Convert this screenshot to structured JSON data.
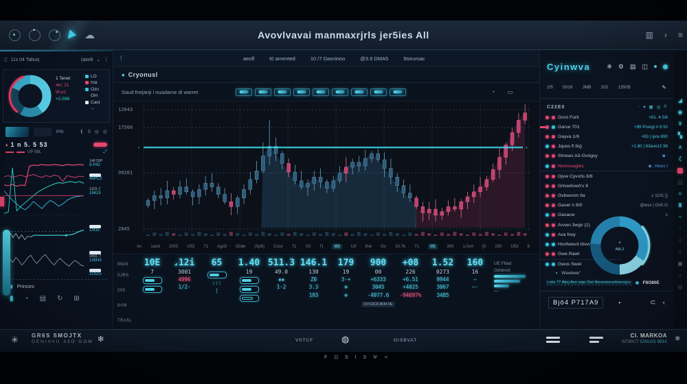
{
  "window_title": "Avovlvavai manmaxrjrls jer5ies All",
  "header": {
    "left_icons": [
      "timer-icon",
      "refresh-icon",
      "clock-icon",
      "play-icon",
      "cloud-icon"
    ],
    "cloud_glyph": "☁",
    "right_icons": [
      {
        "name": "panel-icon",
        "glyph": "▥"
      },
      {
        "name": "chevron-right-icon",
        "glyph": "›"
      },
      {
        "name": "menu-icon",
        "glyph": "≡"
      }
    ]
  },
  "left_sidebar": {
    "header": {
      "grip": "⁞⁞",
      "title": "11s 04 Tabuq",
      "right_label": "(asv9",
      "chevron": "⌄",
      "more": "⋮"
    },
    "donut_legend_left": [
      "1 Tenet",
      "4k/; 21",
      "W-p1",
      "+2.598"
    ],
    "donut_legend_right": [
      {
        "marker": "#35c5e0",
        "label": "LO"
      },
      {
        "marker": "#e8476f",
        "label": "roa"
      },
      {
        "marker": "#35c5e0",
        "label": "Ozn"
      },
      {
        "marker": "",
        "label": "Om"
      },
      {
        "marker": "#dfe8ee",
        "label": "Cast"
      },
      {
        "marker": "",
        "label": "←"
      }
    ],
    "strip": {
      "label": "PSI",
      "icons": [
        "❪",
        "0",
        "◎",
        "◎"
      ]
    },
    "chart_title_prefix": "▴",
    "chart_title": "1 n 5. 5 53",
    "chart_sub": "UP 58L",
    "line_labels": [
      {
        "pill": false,
        "l1": "14F15P",
        "l2": "8·P42"
      },
      {
        "pill": true,
        "l1": "",
        "l2": "45PC2"
      },
      {
        "pill": false,
        "l1": "1115·7",
        "l2": "19415"
      }
    ],
    "spark_labels": [
      {
        "pill": true,
        "l1": "",
        "l2": "1/915"
      },
      {
        "pill": true,
        "l1": "0441·7",
        "l2": "155N3"
      },
      {
        "pill": true,
        "l1": "",
        "l2": "1U515"
      }
    ],
    "footer_label": "Princes",
    "footer_icon": "▮▮",
    "bottom_icons": [
      "▮",
      "◔",
      "▤",
      "↻",
      "⊞"
    ]
  },
  "main": {
    "nav_grip": "⁞",
    "nav_items": [
      "aeofl",
      "t0 amented",
      "10 /7 Dasninoo",
      "@3.9 DMA5",
      "5torursac"
    ],
    "subtitle_dot": "◆",
    "subtitle": "Cryonusl",
    "tools_text": "Saud fnejanji i nuadame di warret",
    "toolbar_buttons": [
      "candles",
      "bars",
      "wave",
      "trend",
      "grid",
      "flag",
      "pen",
      "split",
      "compare"
    ],
    "toolbar_right_icons": [
      {
        "name": "cloud-sync-icon",
        "glyph": "◔"
      },
      {
        "name": "card-icon",
        "glyph": "▭"
      }
    ],
    "stats": {
      "row_labels": [
        "99A5",
        "0JRS",
        "205",
        "8/08",
        "TRA5L"
      ],
      "columns": [
        {
          "big": "10E",
          "sub": "7",
          "pills": 2,
          "extras": []
        },
        {
          "big": "12i",
          "prefix": "◢",
          "sub": "3001",
          "pills": 0,
          "extras": [
            {
              "t": "4096",
              "c": "pink"
            },
            {
              "t": "1/2·",
              "c": "cyan"
            }
          ]
        },
        {
          "big": "65",
          "sub": "",
          "pills": 1,
          "extras": [
            {
              "t": ":::",
              "c": "cyan"
            },
            {
              "t": "¦",
              "c": "cyan"
            }
          ]
        },
        {
          "big": "1.40",
          "sub": "19",
          "pills": 3,
          "extras": []
        },
        {
          "big": "511.3",
          "sub": "49.0",
          "pills": 0,
          "extras": [
            {
              "t": "▪▪",
              "c": "cyan"
            },
            {
              "t": "1·2",
              "c": "cyan"
            }
          ]
        },
        {
          "big": "146.1",
          "sub": "130",
          "pills": 0,
          "extras": [
            {
              "t": "Z0",
              "c": "cyan"
            },
            {
              "t": "3.3",
              "c": "cyan"
            },
            {
              "t": "193",
              "c": "cyan"
            }
          ]
        },
        {
          "big": "179",
          "sub": "19",
          "pills": 0,
          "extras": [
            {
              "t": "3·+",
              "c": "cyan"
            },
            {
              "t": "⊛",
              "c": "cyan"
            },
            {
              "t": "⊛",
              "c": "cyan"
            }
          ]
        },
        {
          "big": "900",
          "sub": "00",
          "pills": 0,
          "extras": [
            {
              "t": "+6333",
              "c": "cyan"
            },
            {
              "t": "3045",
              "c": "cyan"
            },
            {
              "t": "-4977.6",
              "c": "cyan"
            }
          ],
          "badge": "OVS3CK3KM·0E"
        },
        {
          "big": "+08",
          "sub": "226",
          "pills": 0,
          "extras": [
            {
              "t": "+6.51",
              "c": "cyan"
            },
            {
              "t": "+4025",
              "c": "cyan"
            },
            {
              "t": "-94697%",
              "c": "pink"
            }
          ]
        },
        {
          "big": "1.52",
          "sub": "0273",
          "pills": 0,
          "extras": [
            {
              "t": "9944",
              "c": "cyan"
            },
            {
              "t": "3067",
              "c": "cyan"
            },
            {
              "t": "3485",
              "c": "cyan"
            }
          ]
        },
        {
          "big": "160",
          "sub": "16",
          "pills": 0,
          "extras": [
            {
              "t": "—",
              "c": "cyan"
            },
            {
              "t": "—·",
              "c": "cyan"
            }
          ]
        }
      ],
      "right_block": {
        "lines": [
          "UE Fltad",
          "Odsbvst"
        ],
        "bars": [
          46,
          38,
          22
        ],
        "mini": "— ·"
      }
    }
  },
  "right_sidebar": {
    "logo": "Cyinwva",
    "logo_icons": [
      {
        "name": "snowflake-icon",
        "glyph": "❄"
      },
      {
        "name": "gear-icon",
        "glyph": "⚙"
      },
      {
        "name": "panel-icon",
        "glyph": "▤"
      },
      {
        "name": "window-icon",
        "glyph": "◫"
      }
    ],
    "tabs": [
      "2/5",
      "5016",
      "JMB",
      "202",
      "1350$"
    ],
    "tabs_icon": "✎",
    "section_label": "C22E0",
    "section_icons": [
      "∙",
      "▾",
      "▦",
      "◎",
      "0"
    ],
    "items": [
      {
        "d1": "pk",
        "d2": "pk",
        "name": "Grnò Forti",
        "value": "+81. 4 5/8",
        "vc": "cyan"
      },
      {
        "d1": "pk",
        "d2": "cy",
        "name": "Garve 701",
        "value": "+89 Prwrgt # 8 50",
        "vc": "cyan",
        "tag": true
      },
      {
        "d1": "pk",
        "d2": "pk",
        "name": "Gayva 1/8",
        "value": "+83 | qvw 890",
        "vc": "cyan"
      },
      {
        "d1": "cy",
        "d2": "pk",
        "name": "Jques fl 8q)",
        "value": "+1.80 | 63ave12 98",
        "vc": "cyan"
      },
      {
        "d1": "pk",
        "d2": "pk",
        "name": "Shrews Aô-Gvògvy",
        "value": "◙ ·",
        "vc": "blue"
      },
      {
        "d1": "cy",
        "d2": "pk",
        "name": "Nomsoagles",
        "nc": "pink",
        "value": "◙ , Hews t",
        "vc": "blue"
      },
      {
        "d1": "pk",
        "d2": "pk",
        "name": "Gjvw Cyvvôs 8/8",
        "value": "",
        "vc": "gray",
        "divider": true
      },
      {
        "d1": "pk",
        "d2": "pk",
        "name": "Grtvwôvwô'v 8",
        "value": "",
        "vc": "gray"
      },
      {
        "d1": "pk",
        "d2": "pk",
        "name": "Gvbwvom 9a",
        "value": "c   1101 [)",
        "vc": "gray"
      },
      {
        "d1": "pk",
        "d2": "pk",
        "name": "Gaver n 8/0",
        "value": "@wvs | O#5 O",
        "vc": "gray"
      },
      {
        "d1": "cy",
        "d2": "pk",
        "name": "Gasacw",
        "value": "c",
        "vc": "gray"
      },
      {
        "d1": "pk",
        "d2": "pk",
        "name": "Arvwo 3wgv (1)",
        "value": "",
        "vc": "gray",
        "narrow": true
      },
      {
        "d1": "cy",
        "d2": "pk",
        "name": "Ava frwy",
        "value": "",
        "vc": "gray",
        "narrow": true
      },
      {
        "d1": "cy",
        "d2": "cy",
        "name": "Hovfwwvò lôvvo",
        "value": "",
        "vc": "gray",
        "narrow": true
      },
      {
        "d1": "pk",
        "d2": "pk",
        "name": "Gwe Rawt",
        "value": "",
        "vc": "gray",
        "narrow": true
      },
      {
        "d1": "cy",
        "d2": "cy",
        "name": "Gwos Swet",
        "value": "",
        "vc": "gray",
        "narrow": true,
        "divider": true
      }
    ],
    "sub_item": {
      "icon": "◖",
      "label": "Wwelwer'"
    },
    "link_text": "Lvòs 77 Abcj Avo wqe Owt 8wvewwvwôwwvgvo",
    "link_badge": "F8O80E",
    "panel_footer": {
      "label": "Bjô4 P717A9",
      "dot": "•",
      "icons": [
        {
          "name": "subset-icon",
          "glyph": "⊂"
        },
        {
          "name": "chevron-left-icon",
          "glyph": "‹"
        }
      ]
    }
  },
  "right_strip_icons": [
    {
      "g": "◢",
      "c": "cyan"
    },
    {
      "g": "◉",
      "c": "cyan"
    },
    {
      "g": "¥",
      "c": "cyan"
    },
    {
      "g": "▚",
      "c": "cyan"
    },
    {
      "g": "∧",
      "c": "cyan"
    },
    {
      "g": "ζ",
      "c": "cyan"
    },
    {
      "g": "",
      "c": "pink",
      "sq": true
    },
    {
      "g": "◫",
      "c": "gray"
    },
    {
      "g": "≈",
      "c": "cyan"
    },
    {
      "g": "♜",
      "c": "cyan"
    },
    {
      "g": "~",
      "c": "cyan"
    },
    {
      "g": "·",
      "c": "cyan"
    },
    {
      "g": "○",
      "c": "gray"
    },
    {
      "g": "○",
      "c": "gray"
    },
    {
      "g": "▣",
      "c": "gray"
    },
    {
      "g": "○",
      "c": "gray"
    },
    {
      "g": "◎",
      "c": "gray"
    }
  ],
  "footer": {
    "left_icon": "✳",
    "brand_line1": "GR6S SMOJTX",
    "brand_line2": "DENIAVU 33O GOM",
    "left_icon2": "✻",
    "mid_label1": "VflTCF",
    "globe_glyph": "◍",
    "mid_label2": "OISBVAT",
    "right_line1": "CI. MARKOA",
    "right_line2a": "SITBICT",
    "right_line2b": "CIXLVO 9931",
    "right_icon": "❄"
  },
  "social_text": "F ⊡ S I S Ψ ≺",
  "colors": {
    "accent_cyan": "#45d5ea",
    "accent_pink": "#e8476f",
    "candle_blue": "#3d6e8f",
    "candle_pink": "#d94f7e"
  },
  "chart_data": [
    {
      "id": "main-candles",
      "type": "candlestick",
      "title": "Cryonusl main price chart",
      "y_tick_labels": [
        "12043",
        "17500",
        "99201",
        "2845"
      ],
      "x_tick_labels": [
        "An",
        "1and",
        "2003",
        "U53",
        "71",
        "Agd3",
        "tOdw",
        "(Sp6)",
        "Cvso",
        "71",
        "X3",
        "7)",
        "M3",
        "U0",
        "thw",
        "Ou",
        "10.7b",
        "71",
        "M1",
        "300",
        "1-0xA",
        "[0",
        "200",
        "U53",
        "6"
      ],
      "x_highlight_indices": [
        12,
        18
      ],
      "closes": [
        22,
        26,
        24,
        30,
        27,
        33,
        29,
        25,
        31,
        36,
        33,
        27,
        21,
        17,
        24,
        31,
        39,
        46,
        58,
        66,
        60,
        52,
        45,
        38,
        33,
        36,
        41,
        37,
        32,
        38,
        44,
        49,
        53,
        50,
        56,
        60,
        55,
        48,
        41,
        34,
        28,
        24,
        17,
        12,
        15,
        10,
        13,
        17,
        15,
        21,
        25,
        29,
        33,
        39,
        47,
        57,
        67,
        77,
        87,
        93
      ],
      "pink_from_index": 42,
      "blue_area_range": [
        18,
        42
      ],
      "pink_area_range": [
        42,
        59
      ],
      "reference_line_level": 65,
      "ylim": [
        0,
        100
      ],
      "colors": {
        "blue_body": "#2e5d7d",
        "blue_wick": "#6aa3c2",
        "pink_body": "#c2416e",
        "pink_wick": "#ef6e97",
        "reference": "#3fe2f0",
        "blue_area": "rgba(70,150,195,0.20)",
        "pink_area": "rgba(225,70,125,0.15)"
      }
    },
    {
      "id": "left-lines",
      "type": "line",
      "title": "Left panel multi-series chart",
      "series": [
        {
          "name": "pink-step",
          "color": "#e8476f",
          "values": [
            56,
            55,
            57,
            54,
            56,
            55,
            88,
            90,
            89,
            91,
            90,
            90,
            91,
            90,
            89,
            91,
            90,
            90,
            91,
            90
          ]
        },
        {
          "name": "pink-wavy",
          "color": "#d9436e",
          "values": [
            70,
            72,
            69,
            71,
            73,
            70,
            72,
            74,
            71,
            69,
            72,
            70,
            73,
            71,
            62,
            72,
            70,
            69,
            71,
            70
          ]
        },
        {
          "name": "teal-rise",
          "color": "#2fd4c8",
          "values": [
            8,
            10,
            85,
            12,
            20,
            26,
            32,
            38,
            44,
            48,
            52,
            55,
            58,
            60,
            59,
            61,
            62,
            60,
            62,
            59
          ]
        },
        {
          "name": "teal-low",
          "color": "#2fb9d4",
          "values": [
            46,
            38,
            30,
            24,
            18,
            14,
            20,
            28,
            22,
            16,
            24,
            30,
            26,
            20,
            24,
            30,
            34,
            36,
            37,
            38
          ]
        },
        {
          "name": "pink-baseline",
          "color": "#c23b63",
          "values": [
            38,
            38
          ]
        }
      ]
    },
    {
      "id": "spark-1",
      "type": "line",
      "title": "Sparkline 1",
      "color": "#b9cdd8",
      "accent_color": "#35d0c4",
      "accent_from": 9,
      "baseline": 52,
      "values": [
        52,
        40,
        58,
        35,
        55,
        30,
        48,
        25,
        42,
        38,
        46,
        46,
        46,
        46,
        46,
        46,
        46,
        46,
        47,
        46,
        46,
        46,
        48,
        50,
        55,
        62,
        68,
        72
      ]
    },
    {
      "id": "spark-2",
      "type": "line",
      "title": "Sparkline 2",
      "color": "#9fb3bf",
      "values": [
        28,
        44,
        60,
        48,
        68,
        55,
        38,
        50,
        66,
        76,
        58,
        44,
        56,
        70,
        78,
        62,
        48,
        38,
        54,
        64,
        52,
        42,
        34,
        46,
        56,
        48,
        38,
        34
      ]
    },
    {
      "id": "left-donut",
      "type": "pie",
      "title": "Left sidebar donut",
      "slices": [
        {
          "value": 40,
          "color": "#58cfe8"
        },
        {
          "value": 18,
          "color": "#2e8fb0"
        },
        {
          "value": 24,
          "color": "#16465f"
        },
        {
          "value": 18,
          "color": "#3ab3d4"
        }
      ],
      "accent_arc": {
        "start": 130,
        "sweep": 120,
        "color": "#ff3d66"
      }
    },
    {
      "id": "right-donut",
      "type": "pie",
      "title": "Right sidebar donut",
      "slices": [
        {
          "value": 34,
          "color": "#2f9cc9"
        },
        {
          "value": 16,
          "color": "#8fd9ec"
        },
        {
          "value": 26,
          "color": "#16597d"
        },
        {
          "value": 24,
          "color": "#2480ab"
        }
      ],
      "accent_arc": {
        "start": -40,
        "sweep": 80,
        "color": "#8feafb"
      },
      "center_label": "A8L2"
    }
  ]
}
